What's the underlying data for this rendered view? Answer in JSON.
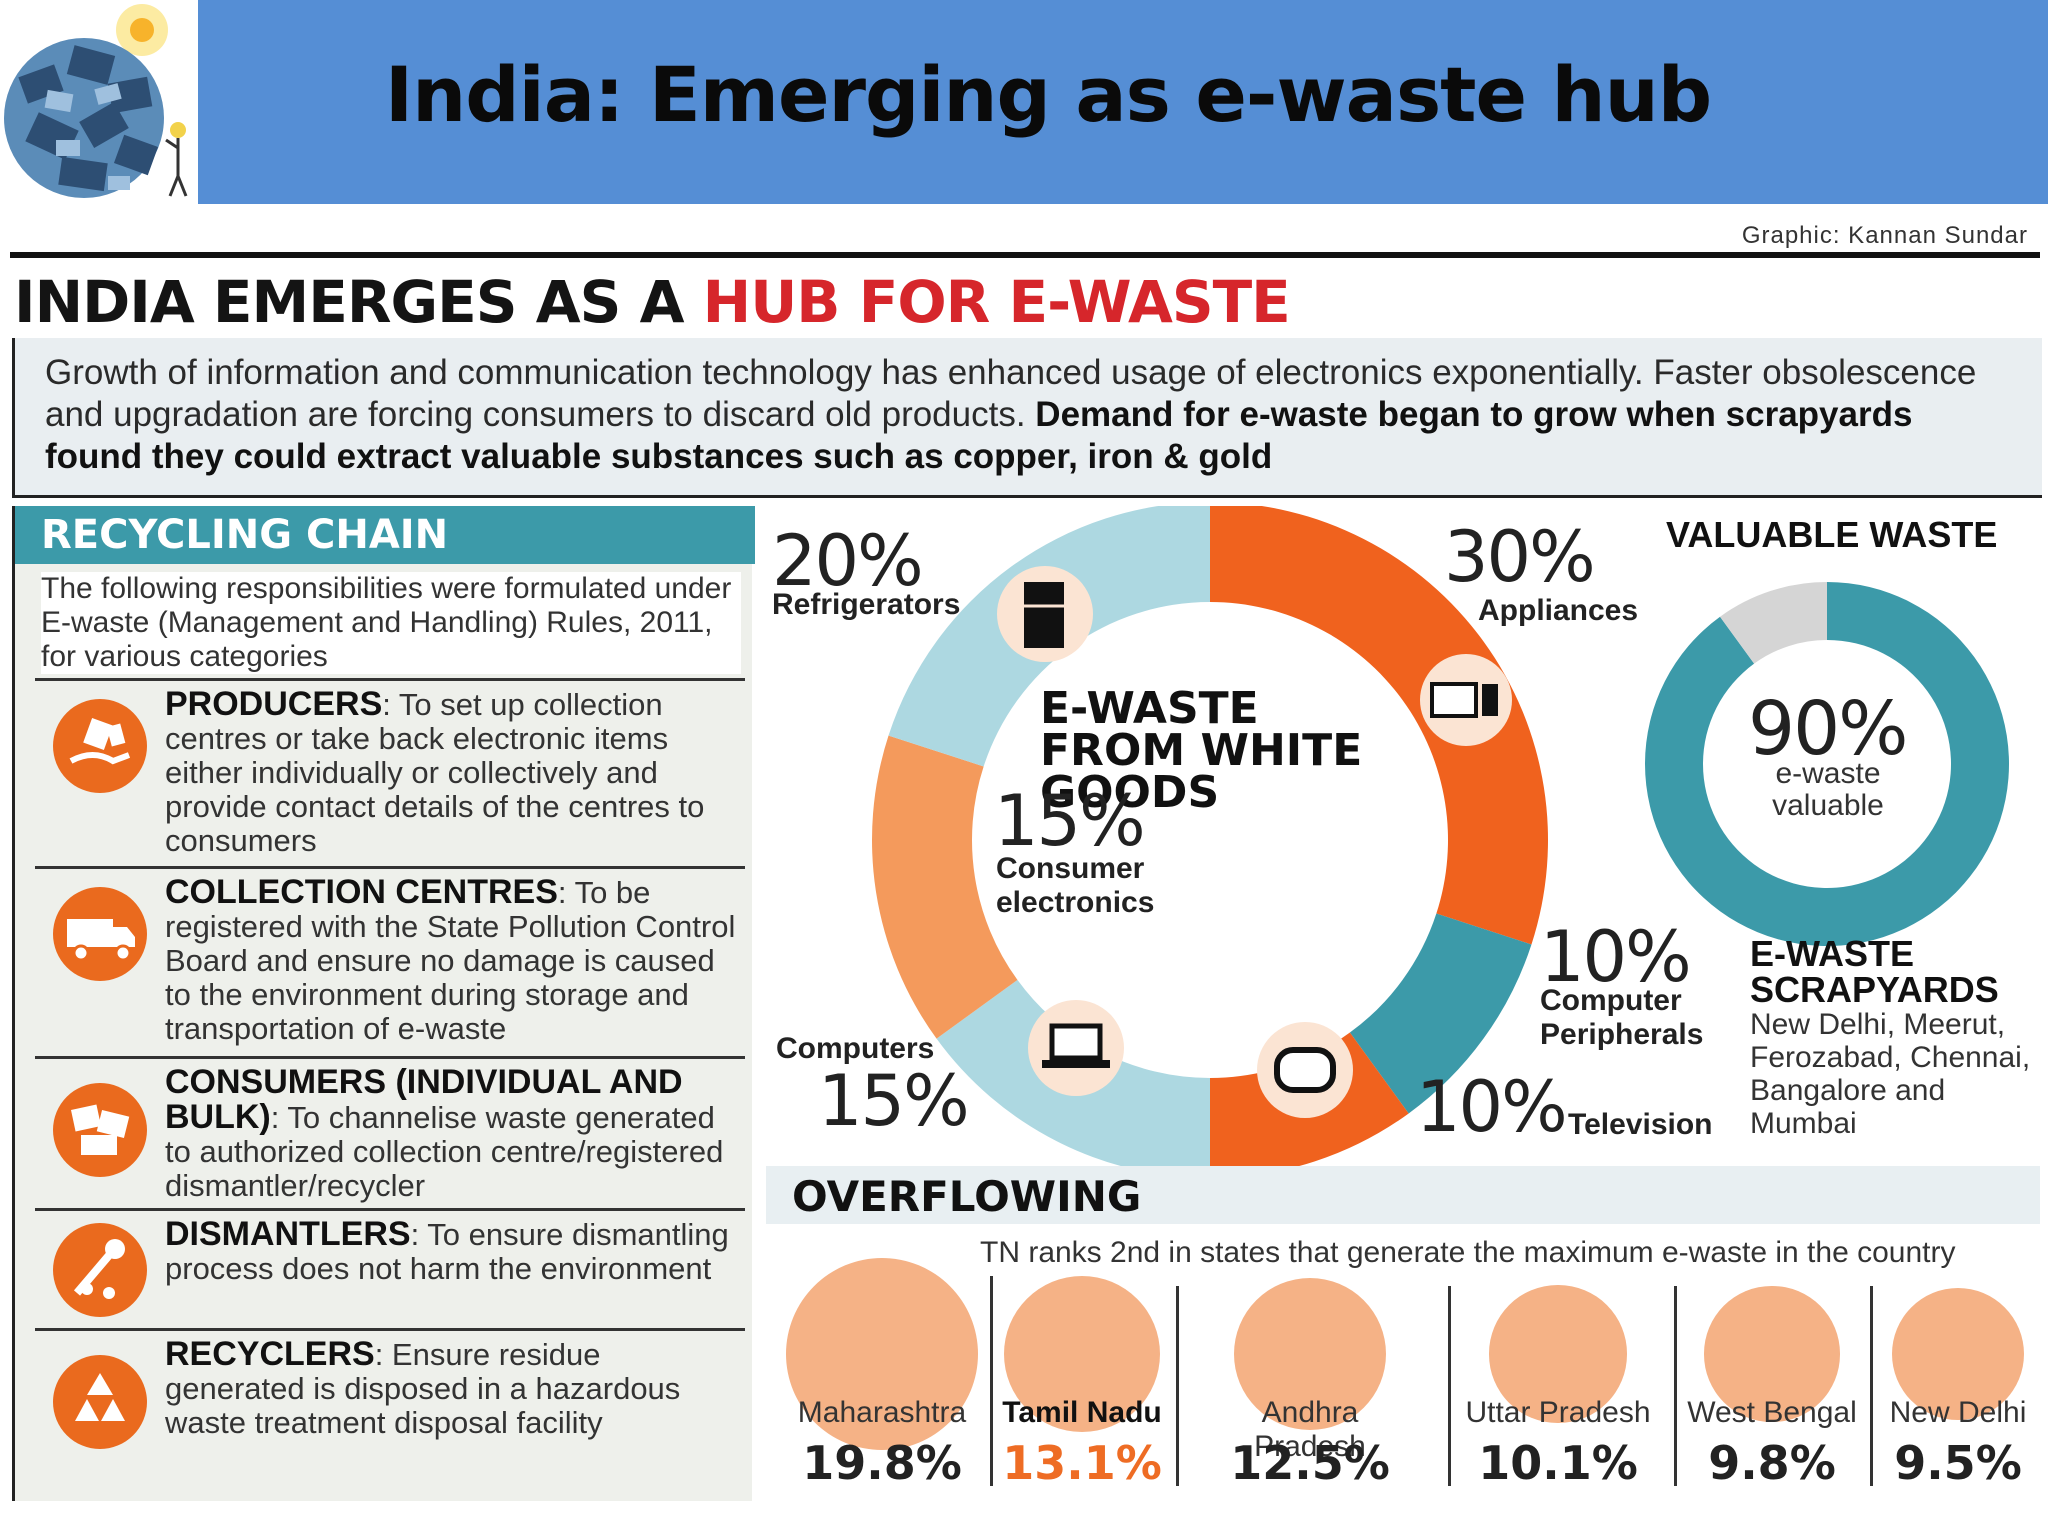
{
  "slide": {
    "title": "India: Emerging as e-waste hub"
  },
  "infographic": {
    "credit": "Graphic: Kannan Sundar",
    "title_part1": "INDIA EMERGES AS A ",
    "title_part2": "HUB FOR E-WASTE",
    "intro_text": "Growth of information and communication technology has enhanced usage of electronics exponentially. Faster obsolescence and upgradation are forcing consumers to discard old products. ",
    "intro_bold": "Demand for e-waste began to grow when scrapyards found they could extract valuable substances such as copper, iron & gold",
    "colors": {
      "orange": "#f0621e",
      "light_orange": "#f49a5c",
      "teal": "#3c9aa9",
      "light_blue": "#add8e1",
      "grey": "#d5d5d5",
      "red": "#d6262b"
    }
  },
  "recycling_chain": {
    "heading": "RECYCLING CHAIN",
    "intro": "The following responsibilities were formulated under E-waste (Management and Handling) Rules, 2011, for various categories",
    "items": [
      {
        "name": "PRODUCERS",
        "text": ": To set up collection centres or take back electronic items either individually or collectively and provide contact details of the centres to consumers",
        "icon": "hand-with-devices-icon"
      },
      {
        "name": "COLLECTION CENTRES",
        "text": ": To be registered with the State Pollution Control Board and ensure no damage is caused to the environment during storage and transportation of e-waste",
        "icon": "truck-icon"
      },
      {
        "name": "CONSUMERS (INDIVIDUAL AND BULK)",
        "text": ": To channelise waste generated to authorized collection centre/registered dismantler/recycler",
        "icon": "waste-pile-icon"
      },
      {
        "name": "DISMANTLERS",
        "text": ": To ensure dismantling process does not harm the environment",
        "icon": "tools-icon"
      },
      {
        "name": "RECYCLERS",
        "text": ": Ensure residue generated is disposed in a hazardous waste treatment disposal facility",
        "icon": "recycle-icon"
      }
    ]
  },
  "chart_data": [
    {
      "type": "pie",
      "title": "E-WASTE FROM WHITE GOODS",
      "categories": [
        "Appliances",
        "Computer Peripherals",
        "Television",
        "Computers",
        "Consumer electronics",
        "Refrigerators"
      ],
      "values": [
        30,
        10,
        10,
        15,
        15,
        20
      ],
      "labels": [
        "30%",
        "10%",
        "10%",
        "15%",
        "15%",
        "20%"
      ],
      "colors": [
        "#f0621e",
        "#3c9aa9",
        "#f0621e",
        "#add8e1",
        "#f49a5c",
        "#add8e1"
      ],
      "style": "donut"
    },
    {
      "type": "pie",
      "title": "VALUABLE WASTE",
      "categories": [
        "e-waste valuable",
        "other"
      ],
      "values": [
        90,
        10
      ],
      "label": "90%",
      "sublabel": "e-waste valuable",
      "colors": [
        "#3c9aa9",
        "#d5d5d5"
      ],
      "style": "donut"
    },
    {
      "type": "bar",
      "style": "bubbles",
      "title": "OVERFLOWING",
      "subtitle": "TN ranks 2nd in states that generate the maximum e-waste in the country",
      "categories": [
        "Maharashtra",
        "Tamil Nadu",
        "Andhra Pradesh",
        "Uttar Pradesh",
        "West Bengal",
        "New Delhi"
      ],
      "values": [
        19.8,
        13.1,
        12.5,
        10.1,
        9.8,
        9.5
      ],
      "labels": [
        "19.8%",
        "13.1%",
        "12.5%",
        "10.1%",
        "9.8%",
        "9.5%"
      ],
      "highlight": "Tamil Nadu"
    }
  ],
  "scrapyards": {
    "title_line1": "E-WASTE",
    "title_line2": "SCRAPYARDS",
    "list": "New Delhi, Meerut, Ferozabad, Chennai, Bangalore and Mumbai"
  }
}
